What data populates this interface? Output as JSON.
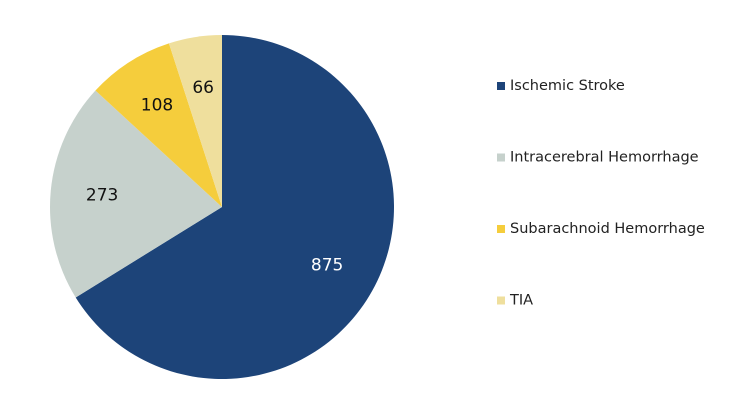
{
  "chart_data": {
    "type": "pie",
    "categories": [
      "Ischemic Stroke",
      "Intracerebral Hemorrhage",
      "Subarachnoid Hemorrhage",
      "TIA"
    ],
    "values": [
      875,
      273,
      108,
      66
    ],
    "colors": [
      "#1d4479",
      "#c6d1cc",
      "#f5cd3c",
      "#efdf9d"
    ],
    "legend": "right"
  }
}
